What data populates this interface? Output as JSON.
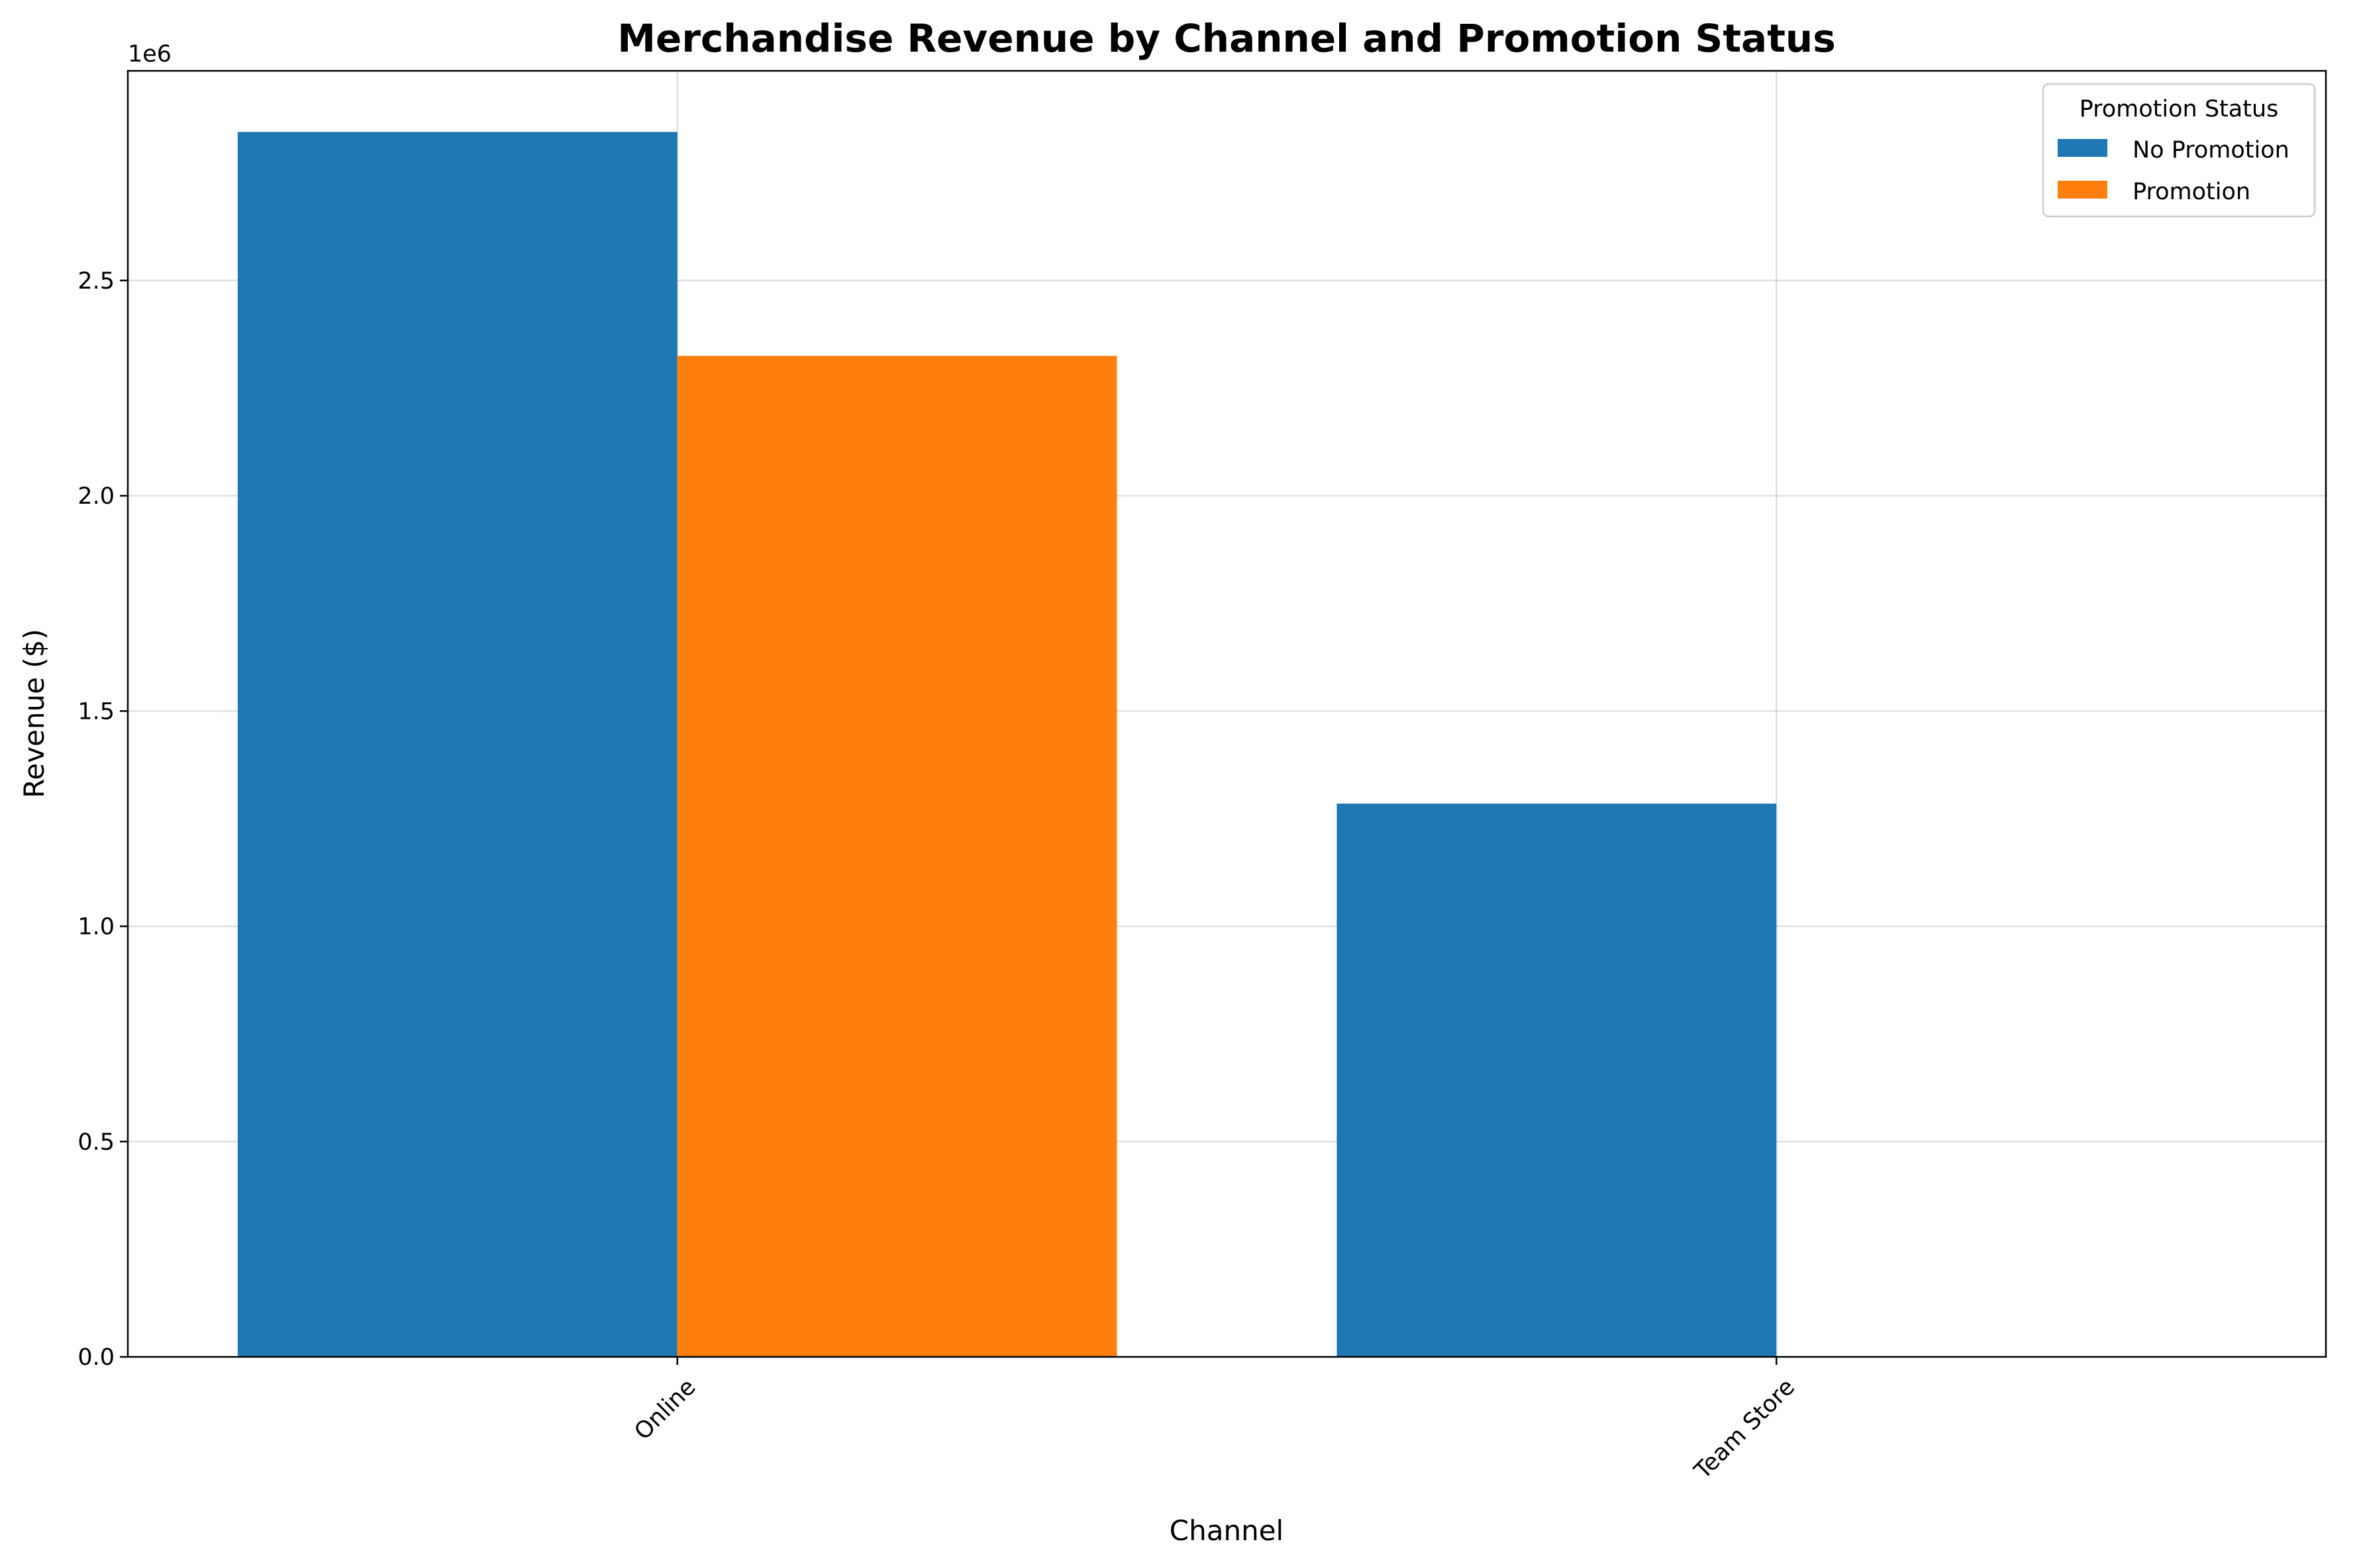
{
  "chart_data": {
    "type": "bar",
    "title": "Merchandise Revenue by Channel and Promotion Status",
    "xlabel": "Channel",
    "ylabel": "Revenue ($)",
    "offset_label": "1e6",
    "categories": [
      "Online",
      "Team Store"
    ],
    "series": [
      {
        "name": "No Promotion",
        "values": [
          2845000,
          1285000
        ],
        "color": "#1f77b4"
      },
      {
        "name": "Promotion",
        "values": [
          2325000,
          null
        ],
        "color": "#ff7f0e"
      }
    ],
    "ylim": [
      0,
      2987000
    ],
    "yticks": [
      0,
      500000,
      1000000,
      1500000,
      2000000,
      2500000
    ],
    "ytick_labels": [
      "0.0",
      "0.5",
      "1.0",
      "1.5",
      "2.0",
      "2.5"
    ],
    "grid": true,
    "legend": {
      "title": "Promotion Status",
      "position": "top-right"
    }
  }
}
